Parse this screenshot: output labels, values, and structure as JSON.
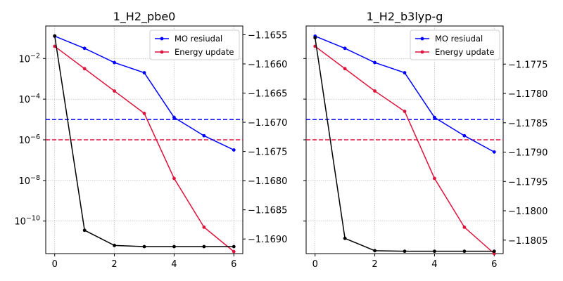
{
  "chart_data": [
    {
      "type": "line",
      "title": "1_H2_pbe0",
      "x": [
        0,
        1,
        2,
        3,
        4,
        5,
        6
      ],
      "xticks": [
        "0",
        "2",
        "4",
        "6"
      ],
      "xlim": [
        -0.3,
        6.3
      ],
      "left_axis": {
        "scale": "log",
        "ylim_log10": [
          -11.6,
          -0.4
        ],
        "ticks": [
          -10,
          -8,
          -6,
          -4,
          -2
        ],
        "tick_labels": [
          [
            "10",
            "−10"
          ],
          [
            "10",
            "−8"
          ],
          [
            "10",
            "−6"
          ],
          [
            "10",
            "−4"
          ],
          [
            "10",
            "−2"
          ]
        ]
      },
      "right_axis": {
        "ylim": [
          -1.16925,
          -1.16535
        ],
        "ticks": [
          -1.169,
          -1.1685,
          -1.168,
          -1.1675,
          -1.167,
          -1.1665,
          -1.166,
          -1.1655
        ],
        "tick_labels": [
          "−1.1690",
          "−1.1685",
          "−1.1680",
          "−1.1675",
          "−1.1670",
          "−1.1665",
          "−1.1660",
          "−1.1655"
        ]
      },
      "series": [
        {
          "name": "MO resiudal",
          "axis": "left",
          "color": "#0000ff",
          "log10_values": [
            -0.9,
            -1.5,
            -2.2,
            -2.7,
            -4.9,
            -5.8,
            -6.5
          ]
        },
        {
          "name": "Energy update",
          "axis": "left",
          "color": "#dc143c",
          "log10_values": [
            -1.4,
            -2.5,
            -3.6,
            -4.7,
            -7.9,
            -10.3,
            -11.5
          ]
        },
        {
          "axis": "right",
          "color": "#000000",
          "values": [
            -1.16552,
            -1.16885,
            -1.16911,
            -1.16913,
            -1.16913,
            -1.16913,
            -1.16913
          ]
        }
      ],
      "thresholds": [
        {
          "log10": -5,
          "color": "#0000ff"
        },
        {
          "log10": -6,
          "color": "#dc143c"
        }
      ],
      "legend_placement": "top-right",
      "grid": true
    },
    {
      "type": "line",
      "title": "1_H2_b3lyp-g",
      "x": [
        0,
        1,
        2,
        3,
        4,
        5,
        6
      ],
      "xticks": [
        "0",
        "2",
        "4",
        "6"
      ],
      "xlim": [
        -0.3,
        6.3
      ],
      "left_axis": {
        "scale": "log",
        "ylim_log10": [
          -11.6,
          -0.4
        ],
        "ticks": [
          -10,
          -8,
          -6,
          -4,
          -2
        ],
        "tick_labels": []
      },
      "right_axis": {
        "ylim": [
          -1.18073,
          -1.17685
        ],
        "ticks": [
          -1.1805,
          -1.18,
          -1.1795,
          -1.179,
          -1.1785,
          -1.178,
          -1.1775
        ],
        "tick_labels": [
          "−1.1805",
          "−1.1800",
          "−1.1795",
          "−1.1790",
          "−1.1785",
          "−1.1780",
          "−1.1775"
        ]
      },
      "series": [
        {
          "name": "MO resiudal",
          "axis": "left",
          "color": "#0000ff",
          "log10_values": [
            -0.9,
            -1.5,
            -2.2,
            -2.7,
            -4.9,
            -5.8,
            -6.6
          ]
        },
        {
          "name": "Energy update",
          "axis": "left",
          "color": "#dc143c",
          "log10_values": [
            -1.4,
            -2.5,
            -3.6,
            -4.6,
            -7.9,
            -10.3,
            -11.6
          ]
        },
        {
          "axis": "right",
          "color": "#000000",
          "values": [
            -1.17705,
            -1.18047,
            -1.18068,
            -1.18069,
            -1.18069,
            -1.18069,
            -1.18069
          ]
        }
      ],
      "thresholds": [
        {
          "log10": -5,
          "color": "#0000ff"
        },
        {
          "log10": -6,
          "color": "#dc143c"
        }
      ],
      "legend_placement": "top-right",
      "grid": true
    }
  ]
}
